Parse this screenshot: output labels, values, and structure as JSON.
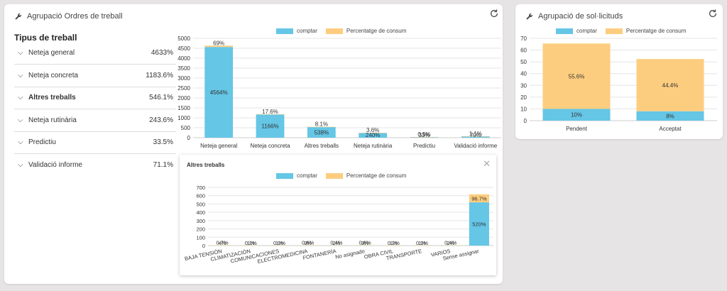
{
  "colors": {
    "count": "#65c6e6",
    "pct": "#fdcd7f",
    "grid": "#e5e5e5",
    "axis": "#ccc"
  },
  "left_panel": {
    "title": "Agrupació Ordres de treball",
    "refresh_icon": "refresh-icon",
    "tipus_title": "Tipus de treball",
    "rows": [
      {
        "label": "Neteja general",
        "value": "4633%"
      },
      {
        "label": "Neteja concreta",
        "value": "1183.6%"
      },
      {
        "label": "Altres treballs",
        "value": "546.1%"
      },
      {
        "label": "Neteja rutinària",
        "value": "243.6%"
      },
      {
        "label": "Predictiu",
        "value": "33.5%"
      },
      {
        "label": "Validació informe",
        "value": "71.1%"
      }
    ]
  },
  "legend": {
    "count": "comptar",
    "pct": "Percentatge de consum"
  },
  "inner_panel": {
    "title": "Altres treballs",
    "close_icon": "close-icon"
  },
  "right_panel": {
    "title": "Agrupació de sol·licituds",
    "refresh_icon": "refresh-icon"
  },
  "chart_data": [
    {
      "type": "bar",
      "stacked": true,
      "ylim": [
        0,
        5000
      ],
      "yticks": [
        0,
        500,
        1000,
        1500,
        2000,
        2500,
        3000,
        3500,
        4000,
        4500,
        5000
      ],
      "categories": [
        "Neteja general",
        "Neteja concreta",
        "Altres treballs",
        "Neteja rutinària",
        "Predictiu",
        "Validació informe"
      ],
      "series": [
        {
          "name": "comptar",
          "values": [
            4564,
            1166,
            538,
            240,
            33,
            70
          ],
          "labels": [
            "4564%",
            "1166%",
            "538%",
            "240%",
            "33%",
            "70%"
          ]
        },
        {
          "name": "Percentatge de consum",
          "values": [
            69,
            17.6,
            8.1,
            3.6,
            0.5,
            1.1
          ],
          "labels": [
            "69%",
            "17.6%",
            "8.1%",
            "3.6%",
            "0.5%",
            "1.1%"
          ]
        }
      ]
    },
    {
      "type": "bar",
      "stacked": true,
      "ylim": [
        0,
        700
      ],
      "yticks": [
        0,
        100,
        200,
        300,
        400,
        500,
        600,
        700
      ],
      "categories": [
        "BAJA TENSIÓN",
        "CLIMATIZACIÓN",
        "COMUNICACIONES",
        "ELECTROMEDICINA",
        "FONTANERÍA",
        "No asignado",
        "OBRA CIVIL",
        "TRANSPORTE",
        "VARIOS",
        "Sense assignar"
      ],
      "series": [
        {
          "name": "comptar",
          "values": [
            4,
            1,
            1,
            3,
            2,
            3,
            1,
            1,
            2,
            520
          ],
          "labels": [
            "4%",
            "1%",
            "1%",
            "3%",
            "2%",
            "3%",
            "1%",
            "1%",
            "2%",
            "520%"
          ]
        },
        {
          "name": "Percentatge de consum",
          "values": [
            0.7,
            0.2,
            0.2,
            0.6,
            0.4,
            0.6,
            0.2,
            0.2,
            0.4,
            96.7
          ],
          "labels": [
            "0.7%",
            "0.2%",
            "0.2%",
            "0.6%",
            "0.4%",
            "0.6%",
            "0.2%",
            "0.2%",
            "0.4%",
            "96.7%"
          ]
        }
      ]
    },
    {
      "type": "bar",
      "stacked": true,
      "ylim": [
        0,
        70
      ],
      "yticks": [
        0,
        10,
        20,
        30,
        40,
        50,
        60,
        70
      ],
      "categories": [
        "Pendent",
        "Acceptat"
      ],
      "series": [
        {
          "name": "comptar",
          "values": [
            10,
            8
          ],
          "labels": [
            "10%",
            "8%"
          ]
        },
        {
          "name": "Percentatge de consum",
          "values": [
            55.6,
            44.4
          ],
          "labels": [
            "55.6%",
            "44.4%"
          ]
        }
      ]
    }
  ]
}
